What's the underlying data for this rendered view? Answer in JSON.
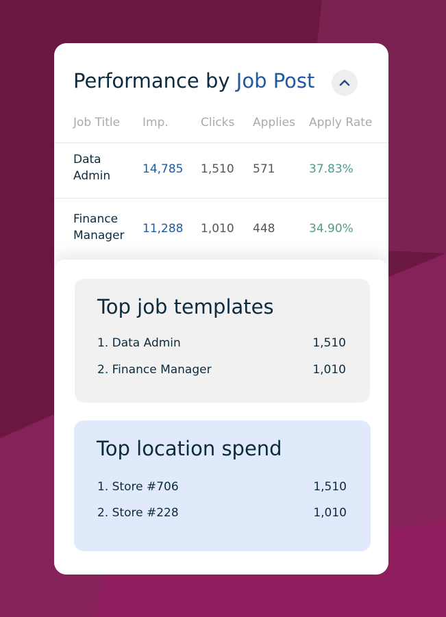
{
  "header": {
    "title_lead": "Performance by",
    "title_highlight": "Job Post"
  },
  "table": {
    "columns": [
      "Job Title",
      "Imp.",
      "Clicks",
      "Applies",
      "Apply Rate"
    ],
    "rows": [
      [
        "Data Admin",
        "14,785",
        "1,510",
        "571",
        "37.83%"
      ],
      [
        "Finance Manager",
        "11,288",
        "1,010",
        "448",
        "34.90%"
      ]
    ]
  },
  "templates": {
    "title": "Top job templates",
    "items": [
      {
        "label": "1. Data Admin",
        "value": "1,510"
      },
      {
        "label": "2. Finance Manager",
        "value": "1,010"
      }
    ]
  },
  "locations": {
    "title": "Top location spend",
    "items": [
      {
        "label": "1. Store #706",
        "value": "1,510"
      },
      {
        "label": "2. Store #228",
        "value": "1,010"
      }
    ]
  }
}
